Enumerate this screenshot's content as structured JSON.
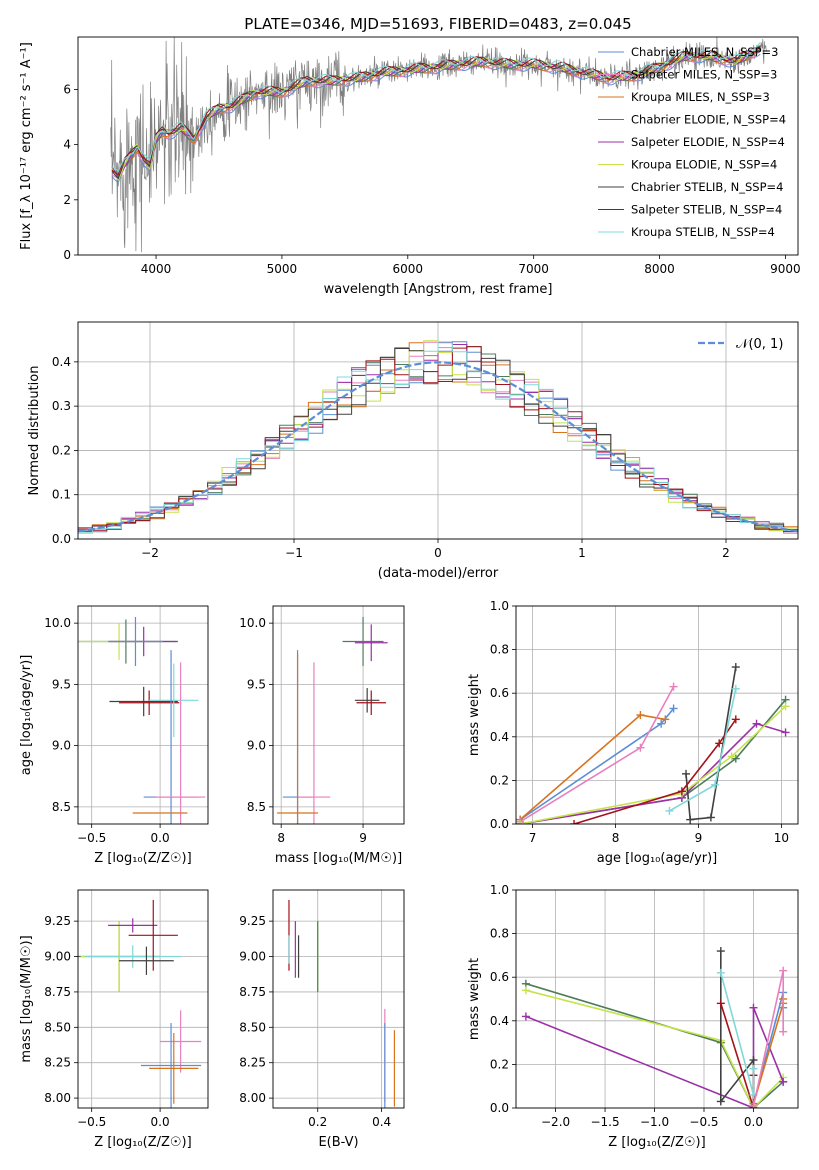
{
  "chart_data": [
    {
      "id": "spectrum",
      "type": "line",
      "title": "PLATE=0346, MJD=51693, FIBERID=0483, z=0.045",
      "xlabel": "wavelength [Angstrom, rest frame]",
      "ylabel": "Flux [f_λ 10⁻¹⁷ erg cm⁻² s⁻¹ A⁻¹]",
      "xlim": [
        3380,
        9100
      ],
      "ylim": [
        0,
        7.9
      ],
      "xticks": [
        4000,
        5000,
        6000,
        7000,
        8000,
        9000
      ],
      "yticks": [
        0,
        2,
        4,
        6
      ],
      "legend_position": "right",
      "legend": [
        {
          "label": "Chabrier MILES, N_SSP=3",
          "color": "#5b8ed6"
        },
        {
          "label": "Salpeter MILES, N_SSP=3",
          "color": "#e87fbf"
        },
        {
          "label": "Kroupa MILES, N_SSP=3",
          "color": "#d8731e"
        },
        {
          "label": "Chabrier ELODIE, N_SSP=4",
          "color": "#4d7d5a"
        },
        {
          "label": "Salpeter ELODIE, N_SSP=4",
          "color": "#9b30a8"
        },
        {
          "label": "Kroupa ELODIE, N_SSP=4",
          "color": "#c6e34a"
        },
        {
          "label": "Chabrier STELIB, N_SSP=4",
          "color": "#404040"
        },
        {
          "label": "Salpeter STELIB, N_SSP=4",
          "color": "#a3121a"
        },
        {
          "label": "Kroupa STELIB, N_SSP=4",
          "color": "#7fd8d8"
        }
      ],
      "data_color": "#808080",
      "model_x": [
        3650,
        3700,
        3750,
        3800,
        3850,
        3900,
        3950,
        4000,
        4050,
        4100,
        4200,
        4300,
        4400,
        4500,
        4600,
        4800,
        5000,
        5200,
        5400,
        5600,
        5800,
        6000,
        6200,
        6400,
        6600,
        6800,
        7000,
        7200,
        7400,
        7600,
        7800,
        8000,
        8200,
        8400,
        8600,
        8800
      ],
      "model_y": [
        3.1,
        2.8,
        3.3,
        3.6,
        3.9,
        3.5,
        3.2,
        4.2,
        4.5,
        4.4,
        4.6,
        4.2,
        5.0,
        5.3,
        5.4,
        5.9,
        5.9,
        6.3,
        6.3,
        6.4,
        6.6,
        6.7,
        6.8,
        6.9,
        7.0,
        6.9,
        6.9,
        6.8,
        6.6,
        6.4,
        6.5,
        6.8,
        7.2,
        7.2,
        7.0,
        7.5
      ]
    },
    {
      "id": "residuals",
      "type": "line",
      "xlabel": "(data-model)/error",
      "ylabel": "Normed distribution",
      "xlim": [
        -2.5,
        2.5
      ],
      "ylim": [
        0,
        0.49
      ],
      "xticks": [
        -2,
        -1,
        0,
        1,
        2
      ],
      "yticks": [
        0.0,
        0.1,
        0.2,
        0.3,
        0.4
      ],
      "grid": true,
      "legend": [
        {
          "label": "𝒩(0, 1)",
          "color": "#5b8ed6",
          "style": "dashed"
        }
      ],
      "legend_position": "top-right"
    },
    {
      "id": "age-vs-Z",
      "type": "scatter",
      "xlabel": "Z [log₁₀(Z/Z☉)]",
      "ylabel": "age  [log₁₀(age/yr)]",
      "xlim": [
        -0.6,
        0.35
      ],
      "ylim": [
        8.36,
        10.14
      ],
      "xticks": [
        -0.5,
        0.0
      ],
      "yticks": [
        8.5,
        9.0,
        9.5,
        10.0
      ],
      "grid": true,
      "points": [
        {
          "x": -0.25,
          "y": 9.85,
          "xerr": 0.37,
          "yerr": 0.18,
          "color": "#4d7d5a"
        },
        {
          "x": -0.3,
          "y": 9.85,
          "xerr": 0.3,
          "yerr": 0.15,
          "color": "#c6e34a"
        },
        {
          "x": -0.12,
          "y": 9.85,
          "xerr": 0.25,
          "yerr": 0.12,
          "color": "#9b30a8"
        },
        {
          "x": -0.18,
          "y": 9.85,
          "xerr": 0.2,
          "yerr": 0.2,
          "color": "#5b8ed6"
        },
        {
          "x": -0.12,
          "y": 9.36,
          "xerr": 0.25,
          "yerr": 0.12,
          "color": "#404040"
        },
        {
          "x": -0.08,
          "y": 9.35,
          "xerr": 0.22,
          "yerr": 0.1,
          "color": "#a3121a"
        },
        {
          "x": 0.1,
          "y": 9.37,
          "xerr": 0.18,
          "yerr": 0.3,
          "color": "#7fd8d8"
        },
        {
          "x": 0.08,
          "y": 8.58,
          "xerr": 0.2,
          "yerr": 1.2,
          "color": "#5b8ed6"
        },
        {
          "x": 0.15,
          "y": 8.58,
          "xerr": 0.18,
          "yerr": 1.1,
          "color": "#e87fbf"
        },
        {
          "x": 0.0,
          "y": 8.45,
          "xerr": 0.2,
          "yerr": 0.0,
          "color": "#d8731e"
        }
      ]
    },
    {
      "id": "age-vs-mass",
      "type": "scatter",
      "xlabel": "mass [log₁₀(M/M☉)]",
      "ylabel": "",
      "xlim": [
        7.9,
        9.5
      ],
      "ylim": [
        8.36,
        10.14
      ],
      "xticks": [
        8,
        9
      ],
      "yticks": [
        8.5,
        9.0,
        9.5,
        10.0
      ],
      "grid": true,
      "points": [
        {
          "x": 9.0,
          "y": 9.85,
          "xerr": 0.25,
          "yerr": 0.2,
          "color": "#4d7d5a"
        },
        {
          "x": 9.1,
          "y": 9.84,
          "xerr": 0.2,
          "yerr": 0.15,
          "color": "#9b30a8"
        },
        {
          "x": 9.05,
          "y": 9.37,
          "xerr": 0.15,
          "yerr": 0.1,
          "color": "#404040"
        },
        {
          "x": 9.1,
          "y": 9.35,
          "xerr": 0.18,
          "yerr": 0.1,
          "color": "#a3121a"
        },
        {
          "x": 8.2,
          "y": 8.58,
          "xerr": 0.18,
          "yerr": 1.2,
          "color": "#5b8ed6"
        },
        {
          "x": 8.4,
          "y": 8.58,
          "xerr": 0.2,
          "yerr": 1.1,
          "color": "#e87fbf"
        },
        {
          "x": 8.2,
          "y": 8.45,
          "xerr": 0.25,
          "yerr": 1.3,
          "color": "#d8731e"
        }
      ]
    },
    {
      "id": "weight-vs-age",
      "type": "line",
      "xlabel": "age  [log₁₀(age/yr)]",
      "ylabel": "mass weight",
      "xlim": [
        6.8,
        10.2
      ],
      "ylim": [
        0.0,
        1.0
      ],
      "xticks": [
        7,
        8,
        9,
        10
      ],
      "yticks": [
        0.0,
        0.2,
        0.4,
        0.6,
        0.8,
        1.0
      ],
      "grid": true,
      "series": [
        {
          "color": "#5b8ed6",
          "x": [
            6.85,
            8.55,
            8.7
          ],
          "y": [
            0.02,
            0.46,
            0.53
          ]
        },
        {
          "color": "#d8731e",
          "x": [
            6.85,
            8.3,
            8.6
          ],
          "y": [
            0.02,
            0.5,
            0.48
          ]
        },
        {
          "color": "#e87fbf",
          "x": [
            6.85,
            8.3,
            8.7
          ],
          "y": [
            0.01,
            0.35,
            0.63
          ]
        },
        {
          "color": "#4d7d5a",
          "x": [
            6.85,
            8.8,
            9.45,
            10.05
          ],
          "y": [
            0.0,
            0.12,
            0.3,
            0.57
          ]
        },
        {
          "color": "#9b30a8",
          "x": [
            6.85,
            8.8,
            9.7,
            10.05
          ],
          "y": [
            0.0,
            0.12,
            0.46,
            0.42
          ]
        },
        {
          "color": "#c6e34a",
          "x": [
            6.85,
            8.8,
            9.4,
            10.05
          ],
          "y": [
            0.0,
            0.14,
            0.31,
            0.54
          ]
        },
        {
          "color": "#404040",
          "x": [
            8.85,
            8.9,
            9.15,
            9.45
          ],
          "y": [
            0.23,
            0.02,
            0.03,
            0.72
          ]
        },
        {
          "color": "#a3121a",
          "x": [
            7.5,
            8.8,
            9.25,
            9.45
          ],
          "y": [
            0.0,
            0.15,
            0.37,
            0.48
          ]
        },
        {
          "color": "#7fd8d8",
          "x": [
            8.65,
            9.2,
            9.45
          ],
          "y": [
            0.06,
            0.18,
            0.62
          ]
        }
      ]
    },
    {
      "id": "mass-vs-Z",
      "type": "scatter",
      "xlabel": "Z [log₁₀(Z/Z☉)]",
      "ylabel": "mass [log₁₀(M/M☉)]",
      "xlim": [
        -0.6,
        0.35
      ],
      "ylim": [
        7.93,
        9.47
      ],
      "xticks": [
        -0.5,
        0.0
      ],
      "yticks": [
        8.0,
        8.25,
        8.5,
        8.75,
        9.0,
        9.25
      ],
      "grid": true,
      "points": [
        {
          "x": -0.3,
          "y": 9.0,
          "xerr": 0.3,
          "yerr": 0.25,
          "color": "#4d7d5a"
        },
        {
          "x": -0.3,
          "y": 9.0,
          "xerr": 0.28,
          "yerr": 0.25,
          "color": "#c6e34a"
        },
        {
          "x": -0.2,
          "y": 9.0,
          "xerr": 0.35,
          "yerr": 0.08,
          "color": "#7fd8d8"
        },
        {
          "x": -0.2,
          "y": 9.22,
          "xerr": 0.18,
          "yerr": 0.05,
          "color": "#9b30a8"
        },
        {
          "x": -0.05,
          "y": 9.15,
          "xerr": 0.18,
          "yerr": 0.25,
          "color": "#a3121a"
        },
        {
          "x": -0.1,
          "y": 8.97,
          "xerr": 0.2,
          "yerr": 0.1,
          "color": "#404040"
        },
        {
          "x": 0.15,
          "y": 8.4,
          "xerr": 0.15,
          "yerr": 0.22,
          "color": "#e87fbf"
        },
        {
          "x": 0.08,
          "y": 8.23,
          "xerr": 0.22,
          "yerr": 0.3,
          "color": "#5b8ed6"
        },
        {
          "x": 0.1,
          "y": 8.21,
          "xerr": 0.18,
          "yerr": 0.25,
          "color": "#d8731e"
        }
      ]
    },
    {
      "id": "mass-vs-EBV",
      "type": "scatter",
      "xlabel": "E(B-V)",
      "ylabel": "",
      "xlim": [
        0.06,
        0.47
      ],
      "ylim": [
        7.93,
        9.47
      ],
      "xticks": [
        0.2,
        0.4
      ],
      "yticks": [
        8.0,
        8.25,
        8.5,
        8.75,
        9.0,
        9.25
      ],
      "grid": true,
      "points": [
        {
          "x": 0.11,
          "y": 9.15,
          "xerr": 0.0,
          "yerr": 0.25,
          "color": "#a3121a"
        },
        {
          "x": 0.13,
          "y": 9.05,
          "xerr": 0.0,
          "yerr": 0.2,
          "color": "#9b30a8"
        },
        {
          "x": 0.14,
          "y": 9.0,
          "xerr": 0.0,
          "yerr": 0.15,
          "color": "#404040"
        },
        {
          "x": 0.2,
          "y": 9.0,
          "xerr": 0.0,
          "yerr": 0.25,
          "color": "#c6e34a"
        },
        {
          "x": 0.2,
          "y": 9.0,
          "xerr": 0.0,
          "yerr": 0.25,
          "color": "#4d7d5a"
        },
        {
          "x": 0.11,
          "y": 9.05,
          "xerr": 0.0,
          "yerr": 0.1,
          "color": "#7fd8d8"
        },
        {
          "x": 0.41,
          "y": 8.3,
          "xerr": 0.0,
          "yerr": 0.33,
          "color": "#e87fbf"
        },
        {
          "x": 0.41,
          "y": 8.23,
          "xerr": 0.0,
          "yerr": 0.3,
          "color": "#5b8ed6"
        },
        {
          "x": 0.44,
          "y": 8.21,
          "xerr": 0.0,
          "yerr": 0.27,
          "color": "#d8731e"
        }
      ]
    },
    {
      "id": "weight-vs-Z",
      "type": "line",
      "xlabel": "Z [log₁₀(Z/Z☉)]",
      "ylabel": "mass weight",
      "xlim": [
        -2.4,
        0.45
      ],
      "ylim": [
        0.0,
        1.0
      ],
      "xticks": [
        -2.0,
        -1.5,
        -1.0,
        -0.5,
        0.0
      ],
      "yticks": [
        0.0,
        0.2,
        0.4,
        0.6,
        0.8,
        1.0
      ],
      "grid": true,
      "series": [
        {
          "color": "#4d7d5a",
          "x": [
            -2.3,
            -0.33,
            0.0,
            0.3
          ],
          "y": [
            0.57,
            0.3,
            0.0,
            0.12
          ]
        },
        {
          "color": "#c6e34a",
          "x": [
            -2.3,
            -0.33,
            0.0,
            0.3
          ],
          "y": [
            0.54,
            0.31,
            0.0,
            0.14
          ]
        },
        {
          "color": "#9b30a8",
          "x": [
            -2.3,
            0.0,
            0.0,
            0.3
          ],
          "y": [
            0.42,
            0.0,
            0.46,
            0.12
          ]
        },
        {
          "color": "#404040",
          "x": [
            -0.33,
            -0.33,
            0.0,
            0.0
          ],
          "y": [
            0.72,
            0.03,
            0.22,
            0.02
          ]
        },
        {
          "color": "#a3121a",
          "x": [
            -0.33,
            0.0,
            0.0
          ],
          "y": [
            0.48,
            0.0,
            0.15
          ]
        },
        {
          "color": "#7fd8d8",
          "x": [
            -0.33,
            0.0,
            0.0
          ],
          "y": [
            0.62,
            0.06,
            0.18
          ]
        },
        {
          "color": "#5b8ed6",
          "x": [
            0.0,
            0.3,
            0.3
          ],
          "y": [
            0.02,
            0.53,
            0.46
          ]
        },
        {
          "color": "#d8731e",
          "x": [
            0.0,
            0.3,
            0.3
          ],
          "y": [
            0.02,
            0.48,
            0.5
          ]
        },
        {
          "color": "#e87fbf",
          "x": [
            0.0,
            0.3,
            0.3
          ],
          "y": [
            0.01,
            0.63,
            0.35
          ]
        }
      ]
    }
  ]
}
